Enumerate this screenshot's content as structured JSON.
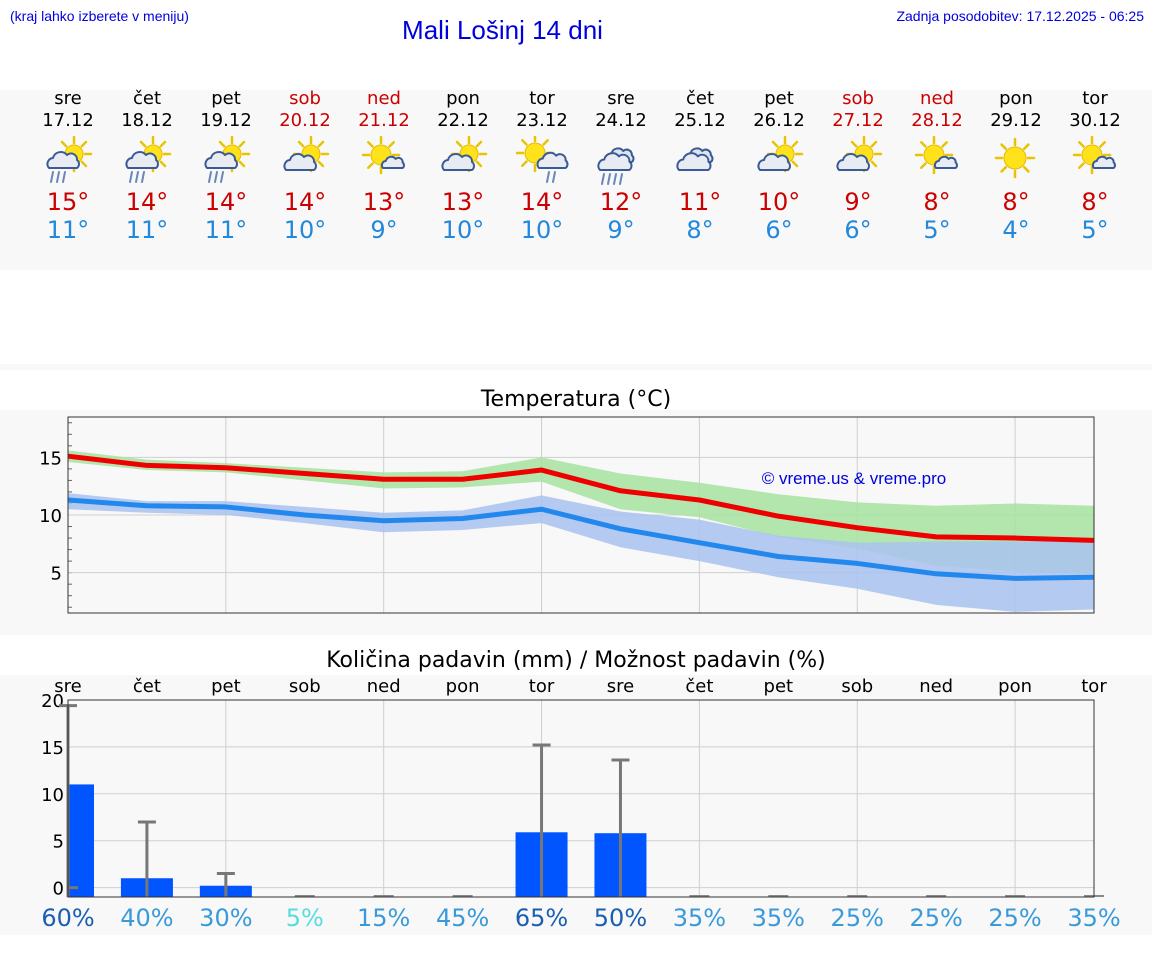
{
  "header": {
    "hint": "(kraj lahko izberete v meniju)",
    "title": "Mali Lošinj 14 dni",
    "updated": "Zadnja posodobitev: 17.12.2025 - 06:25"
  },
  "days": [
    {
      "name": "sre",
      "date": "17.12",
      "weekend": false,
      "icon": "partly-cloudy-rain-icon",
      "tmax": "15°",
      "tmin": "11°"
    },
    {
      "name": "čet",
      "date": "18.12",
      "weekend": false,
      "icon": "partly-cloudy-rain-icon",
      "tmax": "14°",
      "tmin": "11°"
    },
    {
      "name": "pet",
      "date": "19.12",
      "weekend": false,
      "icon": "partly-cloudy-rain-icon",
      "tmax": "14°",
      "tmin": "11°"
    },
    {
      "name": "sob",
      "date": "20.12",
      "weekend": true,
      "icon": "partly-cloudy-icon",
      "tmax": "14°",
      "tmin": "10°"
    },
    {
      "name": "ned",
      "date": "21.12",
      "weekend": true,
      "icon": "sun-small-cloud-icon",
      "tmax": "13°",
      "tmin": "9°"
    },
    {
      "name": "pon",
      "date": "22.12",
      "weekend": false,
      "icon": "partly-cloudy-icon",
      "tmax": "13°",
      "tmin": "10°"
    },
    {
      "name": "tor",
      "date": "23.12",
      "weekend": false,
      "icon": "sun-cloud-rain-icon",
      "tmax": "14°",
      "tmin": "10°"
    },
    {
      "name": "sre",
      "date": "24.12",
      "weekend": false,
      "icon": "cloudy-rain-icon",
      "tmax": "12°",
      "tmin": "9°"
    },
    {
      "name": "čet",
      "date": "25.12",
      "weekend": false,
      "icon": "cloudy-icon",
      "tmax": "11°",
      "tmin": "8°"
    },
    {
      "name": "pet",
      "date": "26.12",
      "weekend": false,
      "icon": "partly-cloudy-icon",
      "tmax": "10°",
      "tmin": "6°"
    },
    {
      "name": "sob",
      "date": "27.12",
      "weekend": true,
      "icon": "partly-cloudy-icon",
      "tmax": "9°",
      "tmin": "6°"
    },
    {
      "name": "ned",
      "date": "28.12",
      "weekend": true,
      "icon": "sun-small-cloud-icon",
      "tmax": "8°",
      "tmin": "5°"
    },
    {
      "name": "pon",
      "date": "29.12",
      "weekend": false,
      "icon": "sun-icon",
      "tmax": "8°",
      "tmin": "4°"
    },
    {
      "name": "tor",
      "date": "30.12",
      "weekend": false,
      "icon": "sun-small-cloud-icon",
      "tmax": "8°",
      "tmin": "5°"
    }
  ],
  "chart_data": [
    {
      "type": "line",
      "title": "Temperatura (°C)",
      "copyright": "© vreme.us & vreme.pro",
      "ylim": [
        1.5,
        18.5
      ],
      "yticks": [
        5,
        10,
        15
      ],
      "x": [
        0,
        1,
        2,
        3,
        4,
        5,
        6,
        7,
        8,
        9,
        10,
        11,
        12,
        13
      ],
      "series": [
        {
          "name": "max",
          "color": "#ee0000",
          "values": [
            15.1,
            14.3,
            14.1,
            13.6,
            13.1,
            13.1,
            13.9,
            12.1,
            11.3,
            9.9,
            8.9,
            8.1,
            8.0,
            7.8
          ]
        },
        {
          "name": "min",
          "color": "#2288ee",
          "values": [
            11.3,
            10.8,
            10.7,
            10.0,
            9.5,
            9.7,
            10.5,
            8.8,
            7.6,
            6.4,
            5.8,
            4.9,
            4.5,
            4.6
          ]
        }
      ],
      "bands": [
        {
          "name": "max-range",
          "color": "#a6e3a0",
          "upper": [
            15.6,
            14.8,
            14.5,
            14.1,
            13.7,
            13.8,
            15.0,
            13.6,
            12.8,
            11.8,
            11.1,
            10.8,
            11.0,
            10.8
          ],
          "lower": [
            14.6,
            13.9,
            13.7,
            13.0,
            12.3,
            12.4,
            12.9,
            10.5,
            9.8,
            8.1,
            7.1,
            5.6,
            5.1,
            4.9
          ]
        },
        {
          "name": "min-range",
          "color": "#a9c2f0",
          "upper": [
            11.9,
            11.2,
            11.2,
            10.7,
            10.2,
            10.4,
            11.7,
            10.3,
            9.6,
            8.2,
            7.6,
            7.7,
            7.7,
            7.7
          ],
          "lower": [
            10.5,
            10.2,
            10.0,
            9.3,
            8.5,
            8.7,
            9.3,
            7.2,
            6.0,
            4.6,
            3.6,
            2.2,
            1.6,
            1.8
          ]
        }
      ]
    },
    {
      "type": "bar",
      "title": "Količina padavin (mm) / Možnost padavin (%)",
      "categories": [
        "sre",
        "čet",
        "pet",
        "sob",
        "ned",
        "pon",
        "tor",
        "sre",
        "čet",
        "pet",
        "sob",
        "ned",
        "pon",
        "tor"
      ],
      "ylim": [
        -1,
        20
      ],
      "yticks": [
        0,
        5,
        10,
        15,
        20
      ],
      "values": [
        11.0,
        1.0,
        0.2,
        0,
        0,
        0,
        5.9,
        5.8,
        0,
        0,
        0,
        0,
        0,
        0
      ],
      "error_max": [
        19.4,
        7.0,
        1.5,
        0,
        0,
        0,
        15.2,
        13.6,
        0,
        0,
        0,
        0,
        0,
        0
      ],
      "probabilities": [
        "60%",
        "40%",
        "30%",
        "5%",
        "15%",
        "45%",
        "65%",
        "50%",
        "35%",
        "35%",
        "25%",
        "25%",
        "25%",
        "35%"
      ],
      "probability_values": [
        60,
        40,
        30,
        5,
        15,
        45,
        65,
        50,
        35,
        35,
        25,
        25,
        25,
        35
      ]
    }
  ],
  "colors": {
    "accent": "#0000dd",
    "max": "#cc0000",
    "min": "#2288dd",
    "bar": "#0055ff"
  }
}
